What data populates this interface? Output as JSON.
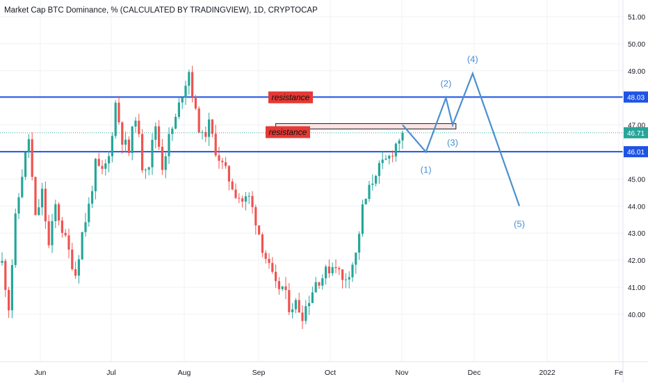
{
  "chart_data": {
    "type": "candlestick",
    "title": "Market Cap BTC Dominance, % (CALCULATED BY TRADINGVIEW), 1D, CRYPTOCAP",
    "y_axis": {
      "side": "right",
      "ticks": [
        40.0,
        41.0,
        42.0,
        43.0,
        44.0,
        45.0,
        46.0,
        47.0,
        48.0,
        49.0,
        50.0,
        51.0
      ],
      "tick_labels": [
        "40.00",
        "41.00",
        "42.00",
        "43.00",
        "44.00",
        "45.00",
        "46.00",
        "47.00",
        "48.00",
        "49.00",
        "50.00",
        "51.00"
      ],
      "range": [
        39.4,
        51.4
      ]
    },
    "x_axis": {
      "tick_labels": [
        "Jun",
        "Jul",
        "Aug",
        "Sep",
        "Oct",
        "Nov",
        "Dec",
        "2022",
        "Fe"
      ]
    },
    "grid": true,
    "up_color": "#26a69a",
    "down_color": "#ef5350",
    "current_price": {
      "value": 46.71,
      "label": "46.71",
      "color": "#26a69a"
    },
    "candle_path": [
      [
        0,
        41.9
      ],
      [
        2,
        40.3
      ],
      [
        4,
        43.5
      ],
      [
        6,
        45.2
      ],
      [
        8,
        46.5
      ],
      [
        10,
        43.5
      ],
      [
        12,
        44.5
      ],
      [
        14,
        42.5
      ],
      [
        16,
        44.0
      ],
      [
        20,
        42.3
      ],
      [
        22,
        41.5
      ],
      [
        24,
        43.0
      ],
      [
        26,
        44.0
      ],
      [
        28,
        45.5
      ],
      [
        30,
        45.2
      ],
      [
        32,
        45.8
      ],
      [
        34,
        47.8
      ],
      [
        36,
        46.5
      ],
      [
        38,
        46.0
      ],
      [
        40,
        47.4
      ],
      [
        42,
        45.5
      ],
      [
        44,
        45.6
      ],
      [
        46,
        47.0
      ],
      [
        48,
        45.5
      ],
      [
        50,
        46.5
      ],
      [
        52,
        47.2
      ],
      [
        54,
        48.2
      ],
      [
        56,
        49.0
      ],
      [
        58,
        47.4
      ],
      [
        60,
        46.5
      ],
      [
        62,
        47.0
      ],
      [
        64,
        46.1
      ],
      [
        66,
        45.5
      ],
      [
        68,
        45.0
      ],
      [
        70,
        44.5
      ],
      [
        72,
        44.2
      ],
      [
        74,
        44.3
      ],
      [
        76,
        43.5
      ],
      [
        78,
        42.5
      ],
      [
        80,
        41.7
      ],
      [
        82,
        41.0
      ],
      [
        84,
        41.0
      ],
      [
        86,
        40.3
      ],
      [
        88,
        40.4
      ],
      [
        90,
        40.0
      ],
      [
        92,
        40.6
      ],
      [
        94,
        41.2
      ],
      [
        96,
        41.4
      ],
      [
        98,
        41.7
      ],
      [
        100,
        41.9
      ],
      [
        102,
        41.2
      ],
      [
        104,
        41.6
      ],
      [
        106,
        42.2
      ],
      [
        108,
        43.9
      ],
      [
        110,
        44.6
      ],
      [
        112,
        45.3
      ],
      [
        114,
        45.5
      ],
      [
        116,
        45.8
      ],
      [
        118,
        46.3
      ],
      [
        120,
        46.71
      ]
    ],
    "horizontal_lines": [
      {
        "value": 48.03,
        "label": "48.03",
        "color": "#1e53e5"
      },
      {
        "value": 46.01,
        "label": "46.01",
        "color": "#1e53e5"
      }
    ],
    "resistance_zone": {
      "low": 46.85,
      "high": 47.05,
      "start_day": 82,
      "end_day": 136
    },
    "annotations": [
      {
        "text": "resistance",
        "attach": "line-48.03"
      },
      {
        "text": "resistance",
        "attach": "zone"
      }
    ],
    "forecast_path": [
      {
        "day": 120,
        "value": 47.0,
        "label": ""
      },
      {
        "day": 127,
        "value": 46.0,
        "label": "(1)"
      },
      {
        "day": 133,
        "value": 48.0,
        "label": "(2)"
      },
      {
        "day": 135,
        "value": 47.0,
        "label": "(3)"
      },
      {
        "day": 141,
        "value": 48.9,
        "label": "(4)"
      },
      {
        "day": 155,
        "value": 44.0,
        "label": "(5)"
      }
    ]
  },
  "theme": {
    "grid_color": "#eef0f4",
    "text_color": "#131722",
    "forecast_color": "#4a8fd0",
    "resistance_fill": "#e53935",
    "zone_fill": "#fbe4e4"
  }
}
